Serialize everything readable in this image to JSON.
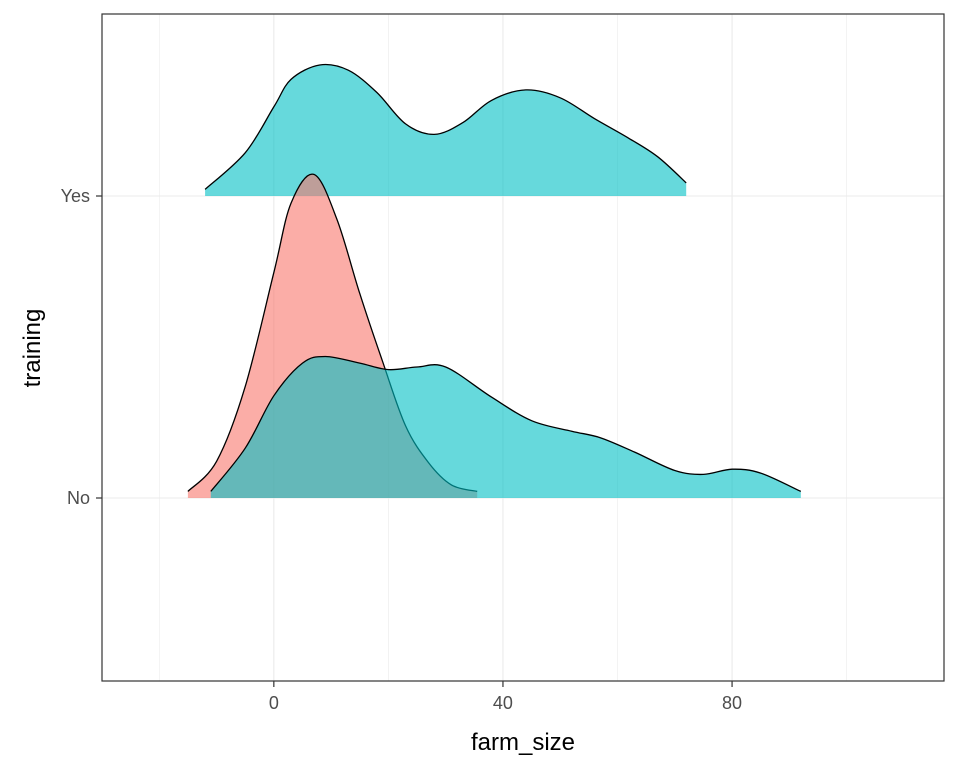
{
  "chart_data": {
    "type": "area",
    "subtype": "ridgeline-density",
    "title": "",
    "xlabel": "farm_size",
    "ylabel": "training",
    "xlim": [
      -30,
      117
    ],
    "x_ticks": [
      0,
      40,
      80
    ],
    "x_tick_labels": [
      "0",
      "40",
      "80"
    ],
    "y_categories": [
      "No",
      "Yes"
    ],
    "grid": true,
    "legend": "none",
    "colors": {
      "red": "#F8766D",
      "teal": "#00BFC4",
      "outline": "#000000",
      "grid": "#ebebeb",
      "panel_border": "#333333"
    },
    "series": [
      {
        "row": "Yes",
        "color": "#00BFC4",
        "x": [
          -12,
          -5,
          0,
          3,
          8,
          13,
          18,
          23,
          28,
          33,
          38,
          44,
          50,
          56,
          62,
          67,
          72
        ],
        "height": [
          0.05,
          0.33,
          0.68,
          0.89,
          1.0,
          0.96,
          0.79,
          0.55,
          0.47,
          0.56,
          0.73,
          0.81,
          0.75,
          0.59,
          0.44,
          0.3,
          0.1
        ]
      },
      {
        "row": "No",
        "color": "#F8766D",
        "x": [
          -15,
          -10,
          -5,
          0,
          3,
          7,
          11,
          15,
          19,
          23,
          27,
          31,
          35.5
        ],
        "height": [
          0.05,
          0.28,
          0.85,
          1.72,
          2.25,
          2.47,
          2.13,
          1.56,
          1.04,
          0.55,
          0.27,
          0.1,
          0.05
        ]
      },
      {
        "row": "No",
        "color": "#00BFC4",
        "x": [
          -11,
          -5,
          0,
          5,
          9,
          15,
          20,
          25,
          30,
          38,
          45,
          52,
          57,
          63,
          70,
          75,
          80,
          85,
          92
        ],
        "height": [
          0.05,
          0.38,
          0.78,
          1.03,
          1.08,
          1.03,
          0.98,
          1.0,
          1.0,
          0.77,
          0.59,
          0.51,
          0.46,
          0.35,
          0.21,
          0.18,
          0.22,
          0.19,
          0.05
        ]
      }
    ]
  }
}
